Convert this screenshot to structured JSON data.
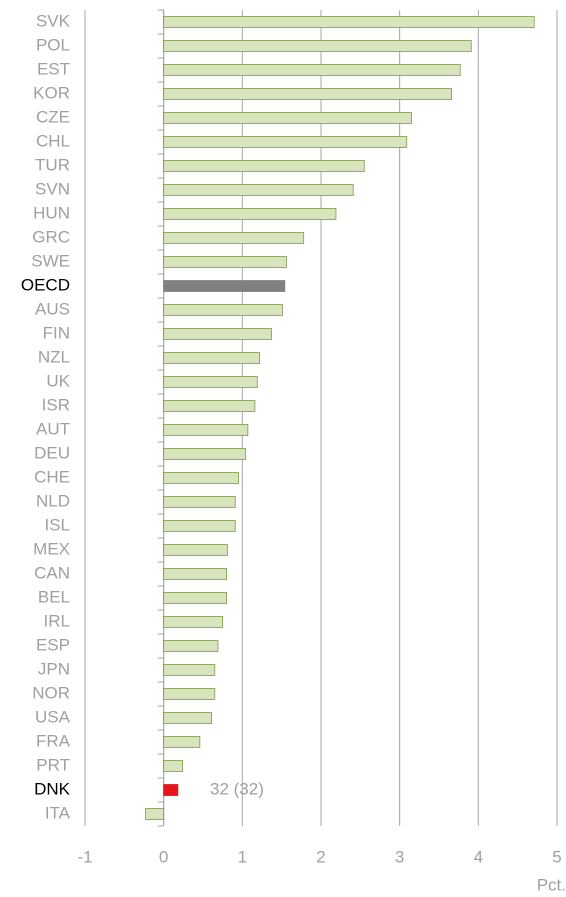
{
  "chart_data": {
    "type": "bar",
    "orientation": "horizontal",
    "categories": [
      "SVK",
      "POL",
      "EST",
      "KOR",
      "CZE",
      "CHL",
      "TUR",
      "SVN",
      "HUN",
      "GRC",
      "SWE",
      "OECD",
      "AUS",
      "FIN",
      "NZL",
      "UK",
      "ISR",
      "AUT",
      "DEU",
      "CHE",
      "NLD",
      "ISL",
      "MEX",
      "CAN",
      "BEL",
      "IRL",
      "ESP",
      "JPN",
      "NOR",
      "USA",
      "FRA",
      "PRT",
      "DNK",
      "ITA"
    ],
    "values": [
      4.71,
      3.91,
      3.77,
      3.66,
      3.15,
      3.09,
      2.55,
      2.41,
      2.19,
      1.78,
      1.56,
      1.54,
      1.51,
      1.37,
      1.22,
      1.19,
      1.16,
      1.07,
      1.04,
      0.95,
      0.91,
      0.91,
      0.81,
      0.8,
      0.8,
      0.75,
      0.69,
      0.65,
      0.65,
      0.61,
      0.46,
      0.24,
      0.18,
      -0.23
    ],
    "colors": [
      "#d7e4bd",
      "#d7e4bd",
      "#d7e4bd",
      "#d7e4bd",
      "#d7e4bd",
      "#d7e4bd",
      "#d7e4bd",
      "#d7e4bd",
      "#d7e4bd",
      "#d7e4bd",
      "#d7e4bd",
      "#808080",
      "#d7e4bd",
      "#d7e4bd",
      "#d7e4bd",
      "#d7e4bd",
      "#d7e4bd",
      "#d7e4bd",
      "#d7e4bd",
      "#d7e4bd",
      "#d7e4bd",
      "#d7e4bd",
      "#d7e4bd",
      "#d7e4bd",
      "#d7e4bd",
      "#d7e4bd",
      "#d7e4bd",
      "#d7e4bd",
      "#d7e4bd",
      "#d7e4bd",
      "#d7e4bd",
      "#d7e4bd",
      "#e8141c",
      "#d7e4bd"
    ],
    "label_colors": [
      "#a0a0a0",
      "#a0a0a0",
      "#a0a0a0",
      "#a0a0a0",
      "#a0a0a0",
      "#a0a0a0",
      "#a0a0a0",
      "#a0a0a0",
      "#a0a0a0",
      "#a0a0a0",
      "#a0a0a0",
      "#000000",
      "#a0a0a0",
      "#a0a0a0",
      "#a0a0a0",
      "#a0a0a0",
      "#a0a0a0",
      "#a0a0a0",
      "#a0a0a0",
      "#a0a0a0",
      "#a0a0a0",
      "#a0a0a0",
      "#a0a0a0",
      "#a0a0a0",
      "#a0a0a0",
      "#a0a0a0",
      "#a0a0a0",
      "#a0a0a0",
      "#a0a0a0",
      "#a0a0a0",
      "#a0a0a0",
      "#a0a0a0",
      "#000000",
      "#a0a0a0"
    ],
    "annotation": "32 (32)",
    "x_label": "Pct.",
    "xlim": [
      -1,
      5
    ],
    "xticks": [
      -1,
      0,
      1,
      2,
      3,
      4,
      5
    ],
    "grid": true
  }
}
